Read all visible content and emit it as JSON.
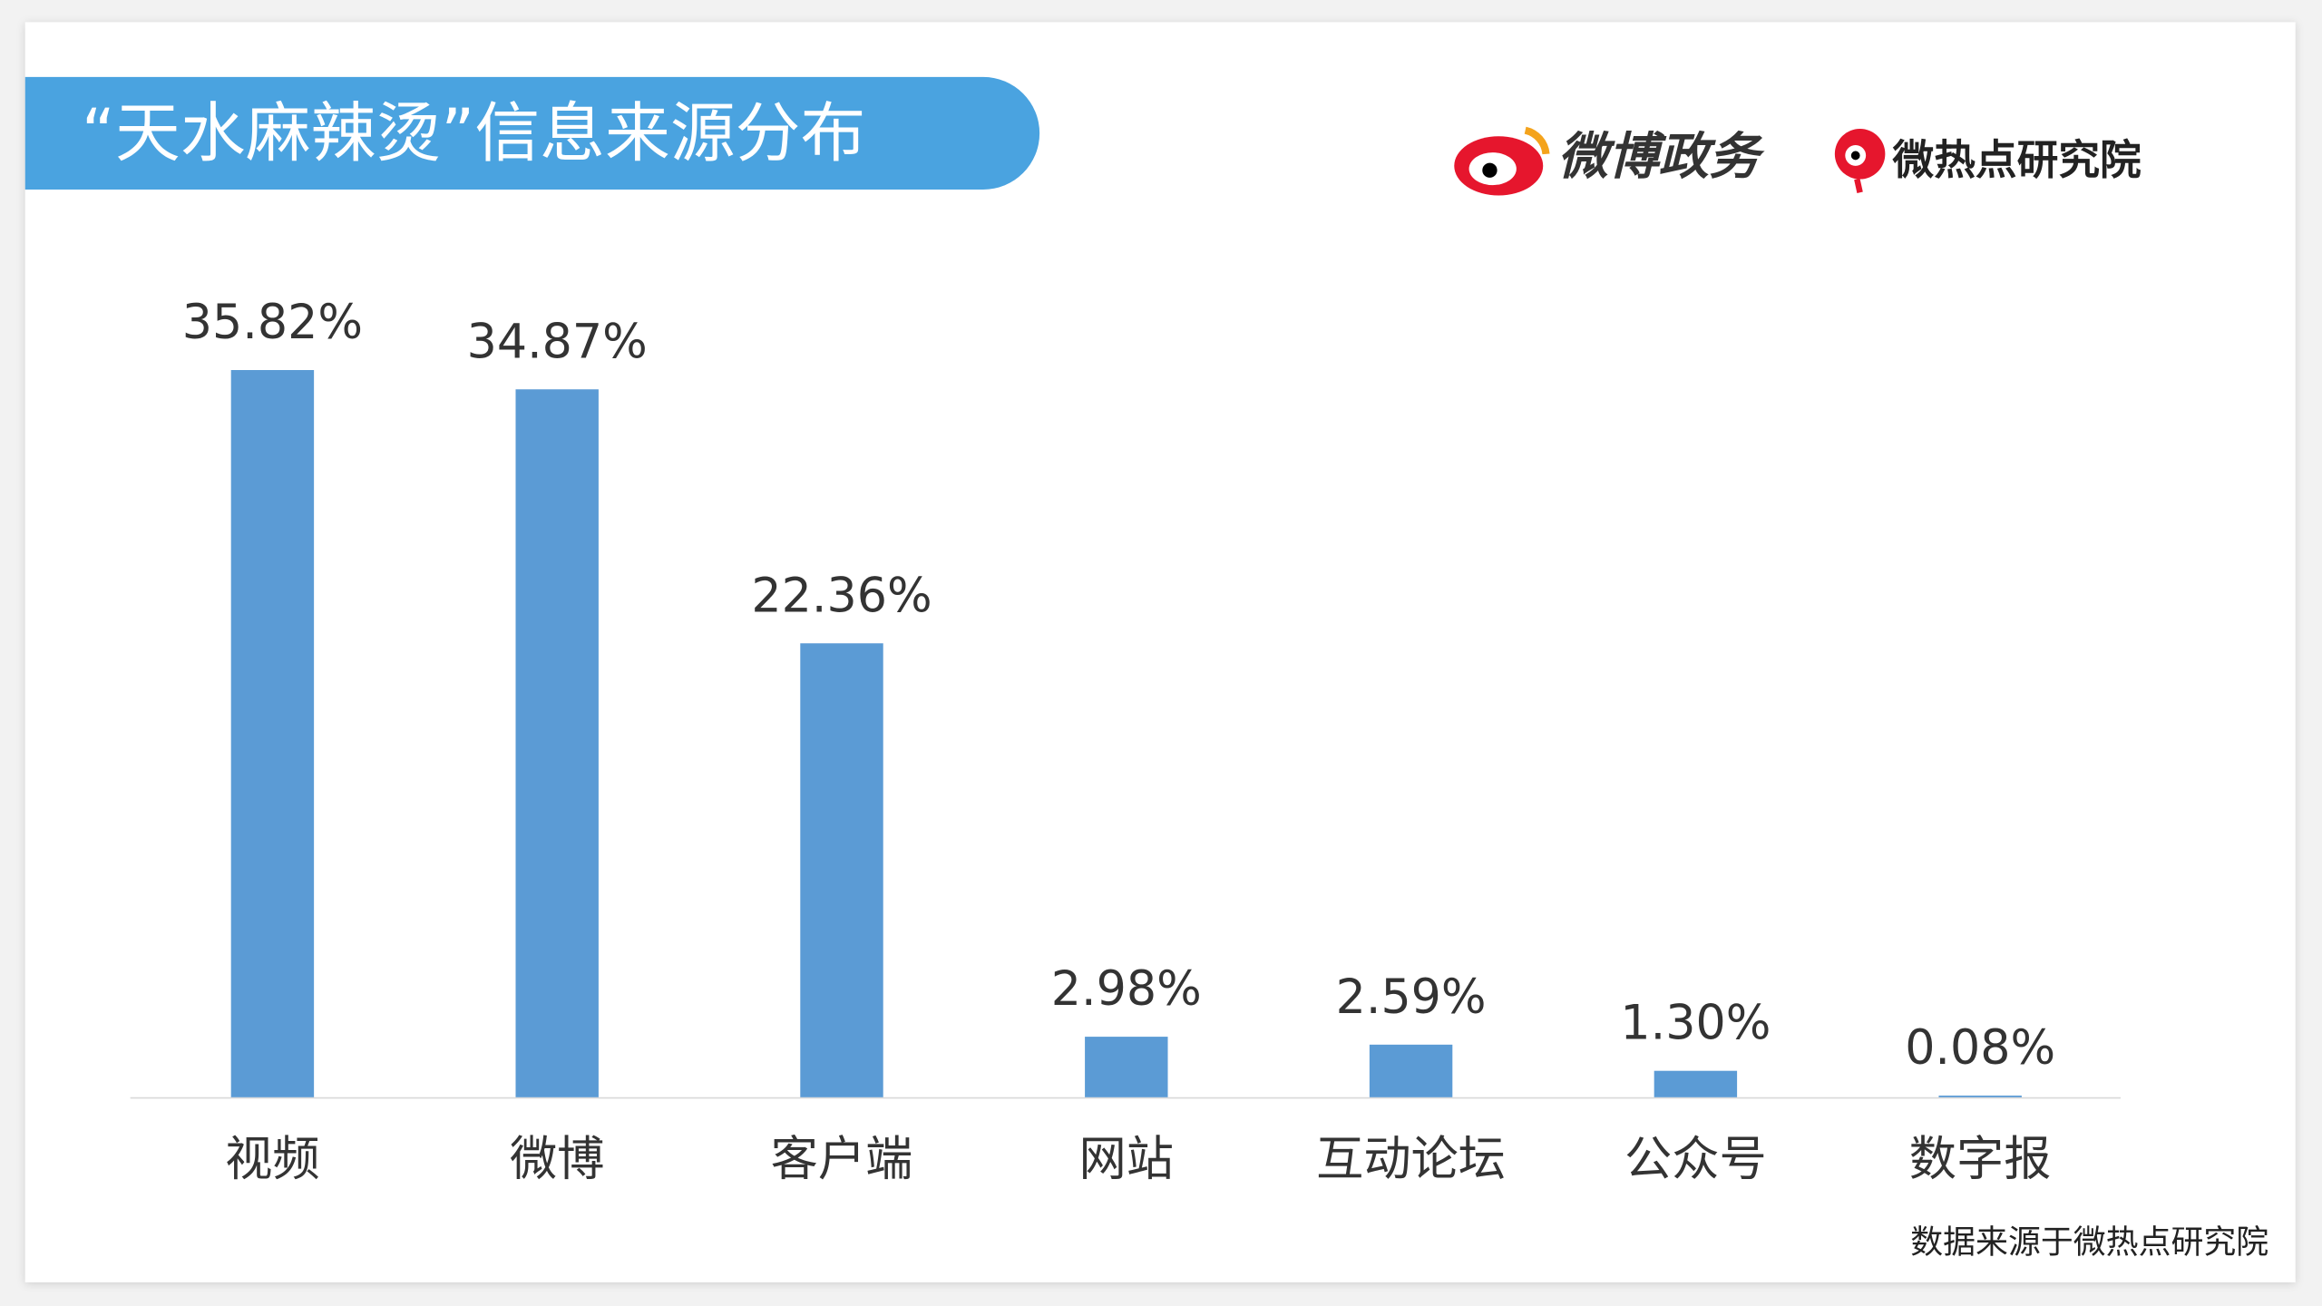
{
  "chart_data": {
    "type": "bar",
    "title": "“天水麻辣烫”信息来源分布",
    "categories": [
      "视频",
      "微博",
      "客户端",
      "网站",
      "互动论坛",
      "公众号",
      "数字报"
    ],
    "values": [
      35.82,
      34.87,
      22.36,
      2.98,
      2.59,
      1.3,
      0.08
    ],
    "value_labels": [
      "35.82%",
      "34.87%",
      "22.36%",
      "2.98%",
      "2.59%",
      "1.30%",
      "0.08%"
    ],
    "color": "#5b9bd5"
  },
  "branding": [
    "微博政务",
    "微热点研究院"
  ],
  "source": "数据来源于微热点研究院"
}
